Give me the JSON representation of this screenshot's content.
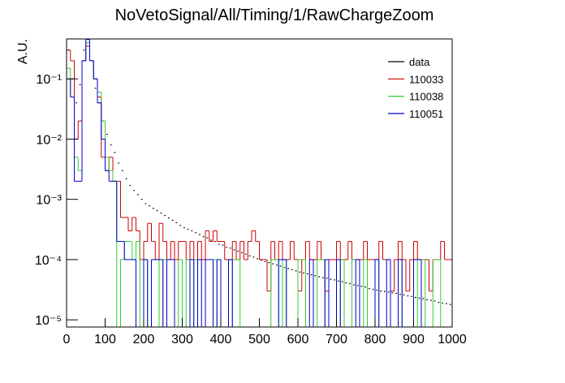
{
  "chart_data": {
    "type": "histogram",
    "title": "NoVetoSignal/All/Timing/1/RawChargeZoom",
    "y_label": "A.U.",
    "log_y": true,
    "legend": "top right",
    "xlim": [
      0,
      1000
    ],
    "ylim": [
      7.6e-06,
      0.46
    ],
    "xticks": [
      0,
      100,
      200,
      300,
      400,
      500,
      600,
      700,
      800,
      900,
      1000
    ],
    "yticks": [
      {
        "value": 1e-05,
        "label": "10⁻⁵"
      },
      {
        "value": 0.0001,
        "label": "10⁻⁴"
      },
      {
        "value": 0.001,
        "label": "10⁻³"
      },
      {
        "value": 0.01,
        "label": "10⁻²"
      },
      {
        "value": 0.1,
        "label": "10⁻¹"
      }
    ],
    "bins": [
      0,
      10,
      20,
      30,
      40,
      50,
      60,
      70,
      80,
      90,
      100,
      110,
      120,
      130,
      140,
      150,
      160,
      170,
      180,
      190,
      200,
      210,
      220,
      230,
      240,
      250,
      260,
      270,
      280,
      290,
      300,
      310,
      320,
      330,
      340,
      350,
      360,
      370,
      380,
      390,
      400,
      410,
      420,
      430,
      440,
      450,
      460,
      470,
      480,
      490,
      500,
      510,
      520,
      530,
      540,
      550,
      560,
      570,
      580,
      590,
      600,
      610,
      620,
      630,
      640,
      650,
      660,
      670,
      680,
      690,
      700,
      710,
      720,
      730,
      740,
      750,
      760,
      770,
      780,
      790,
      800,
      810,
      820,
      830,
      840,
      850,
      860,
      870,
      880,
      890,
      900,
      910,
      920,
      930,
      940,
      950,
      960,
      970,
      980,
      990,
      1000
    ],
    "series": [
      {
        "name": "data",
        "color": "#000000",
        "style": "markers",
        "values": [
          0.3,
          0.1,
          0.04,
          0.08,
          0.3,
          0.4,
          0.2,
          0.07,
          0.04,
          0.02,
          0.012,
          0.008,
          0.006,
          0.004,
          0.003,
          0.0022,
          0.0017,
          0.0014,
          0.0012,
          0.001,
          0.00085,
          0.00078,
          0.00071,
          0.00065,
          0.00059,
          0.00054,
          0.00049,
          0.00045,
          0.00041,
          0.00037,
          0.00034,
          0.00032,
          0.0003,
          0.00028,
          0.00026,
          0.00024,
          0.00023,
          0.00021,
          0.0002,
          0.00018,
          0.000174,
          0.00016,
          0.000155,
          0.000145,
          0.000138,
          0.00013,
          0.000123,
          0.000115,
          0.00011,
          0.000103,
          9.8e-05,
          9.3e-05,
          8.9e-05,
          8.5e-05,
          8.1e-05,
          7.8e-05,
          7.4e-05,
          7.1e-05,
          6.8e-05,
          6.5e-05,
          6.2e-05,
          6e-05,
          5.8e-05,
          5.6e-05,
          5.4e-05,
          5.2e-05,
          5e-05,
          4.9e-05,
          4.7e-05,
          4.6e-05,
          4.4e-05,
          4.3e-05,
          4.1e-05,
          4e-05,
          3.8e-05,
          3.7e-05,
          3.6e-05,
          3.5e-05,
          3.3e-05,
          3.2e-05,
          3.1e-05,
          3e-05,
          2.95e-05,
          2.9e-05,
          2.8e-05,
          2.75e-05,
          2.65e-05,
          2.6e-05,
          2.5e-05,
          2.45e-05,
          2.35e-05,
          2.3e-05,
          2.25e-05,
          2.15e-05,
          2.1e-05,
          2.05e-05,
          1.95e-05,
          1.9e-05,
          1.85e-05,
          1.8e-05
        ]
      },
      {
        "name": "110033",
        "color": "#cc0000",
        "style": "step",
        "values": [
          0.3,
          0.2,
          0.01,
          0.02,
          0.2,
          0.35,
          0.2,
          0.1,
          0.05,
          0.005,
          0.003,
          0.005,
          0.002,
          0.002,
          0.0005,
          0.0005,
          0.0003,
          0.0005,
          0.0003,
          0.0001,
          0.0002,
          0.0004,
          0.0002,
          0.0001,
          0.0004,
          0.0002,
          0.0001,
          0.0002,
          0.0001,
          0.0002,
          0.0002,
          0.0001,
          0.0002,
          0.0001,
          0.0002,
          0.0001,
          0.0003,
          0.0002,
          0.0003,
          0.0002,
          0.0002,
          0.0001,
          0.0001,
          0.0002,
          0.0001,
          0.0002,
          0.0001,
          0.0002,
          0.0003,
          0.0002,
          0.0001,
          0.0001,
          3e-05,
          0.0002,
          0.0001,
          0.0002,
          0.0001,
          0.0001,
          0.0002,
          0.0001,
          3e-05,
          0.0001,
          0.0002,
          0.0001,
          0.0001,
          0.0002,
          0.0001,
          3e-05,
          0.0001,
          0.0001,
          0.0002,
          0.0001,
          0.0001,
          0.0002,
          0.0001,
          0.0001,
          0.0001,
          0.0002,
          0.0001,
          0.0001,
          0.0001,
          0.0002,
          0.0001,
          0.0001,
          3e-05,
          0.0001,
          0.0002,
          0.0001,
          3e-05,
          0.0001,
          0.0002,
          0.0001,
          0.0001,
          0.0001,
          3e-05,
          0.0001,
          0.0001,
          0.0002,
          0.0001,
          0.0001
        ]
      },
      {
        "name": "110038",
        "color": "#33cc33",
        "style": "step",
        "values": [
          0.15,
          0.05,
          0.005,
          0.003,
          0.2,
          0.4,
          0.2,
          0.1,
          0.06,
          0.02,
          0.005,
          0.003,
          0.002,
          null,
          0.0001,
          0.0002,
          0.0002,
          0.0001,
          0.0002,
          null,
          0.0001,
          null,
          0.0001,
          0.0001,
          null,
          0.0001,
          null,
          null,
          null,
          0.0001,
          null,
          0.0001,
          null,
          0.0001,
          null,
          null,
          null,
          null,
          0.0001,
          null,
          null,
          null,
          null,
          0.0001,
          0.0001,
          null,
          null,
          null,
          null,
          null,
          null,
          null,
          null,
          0.0001,
          0.0001,
          null,
          0.0001,
          null,
          null,
          null,
          0.0001,
          0.0001,
          null,
          null,
          null,
          0.0001,
          0.0001,
          null,
          null,
          null,
          null,
          0.0001,
          null,
          null,
          0.0001,
          0.0001,
          null,
          0.0001,
          null,
          null,
          0.0001,
          null,
          null,
          null,
          null,
          null,
          0.0001,
          null,
          null,
          null,
          0.0001,
          null,
          0.0001,
          null,
          null,
          0.0001,
          0.0001,
          null,
          null,
          null
        ]
      },
      {
        "name": "110051",
        "color": "#0000cc",
        "style": "step",
        "values": [
          0.1,
          0.05,
          0.002,
          0.002,
          0.2,
          0.45,
          0.2,
          0.1,
          0.04,
          0.01,
          0.003,
          0.002,
          0.002,
          0.0002,
          0.0002,
          0.0001,
          0.0001,
          0.0001,
          null,
          null,
          0.0001,
          null,
          0.0001,
          0.0001,
          0.0001,
          null,
          0.0001,
          0.0001,
          null,
          null,
          null,
          null,
          0.0001,
          null,
          0.0001,
          null,
          0.0001,
          0.0001,
          null,
          0.0001,
          null,
          null,
          0.0001,
          null,
          null,
          null,
          null,
          null,
          null,
          null,
          null,
          null,
          null,
          null,
          null,
          0.0001,
          0.0001,
          null,
          null,
          null,
          null,
          null,
          null,
          0.0001,
          null,
          null,
          null,
          0.0001,
          null,
          null,
          0.0001,
          null,
          null,
          null,
          null,
          0.0001,
          null,
          null,
          null,
          null,
          0.0001,
          null,
          null,
          0.0001,
          null,
          null,
          0.0001,
          null,
          null,
          null,
          0.0001,
          0.0001,
          null,
          null,
          null,
          null,
          null,
          null,
          null,
          null
        ]
      }
    ]
  }
}
